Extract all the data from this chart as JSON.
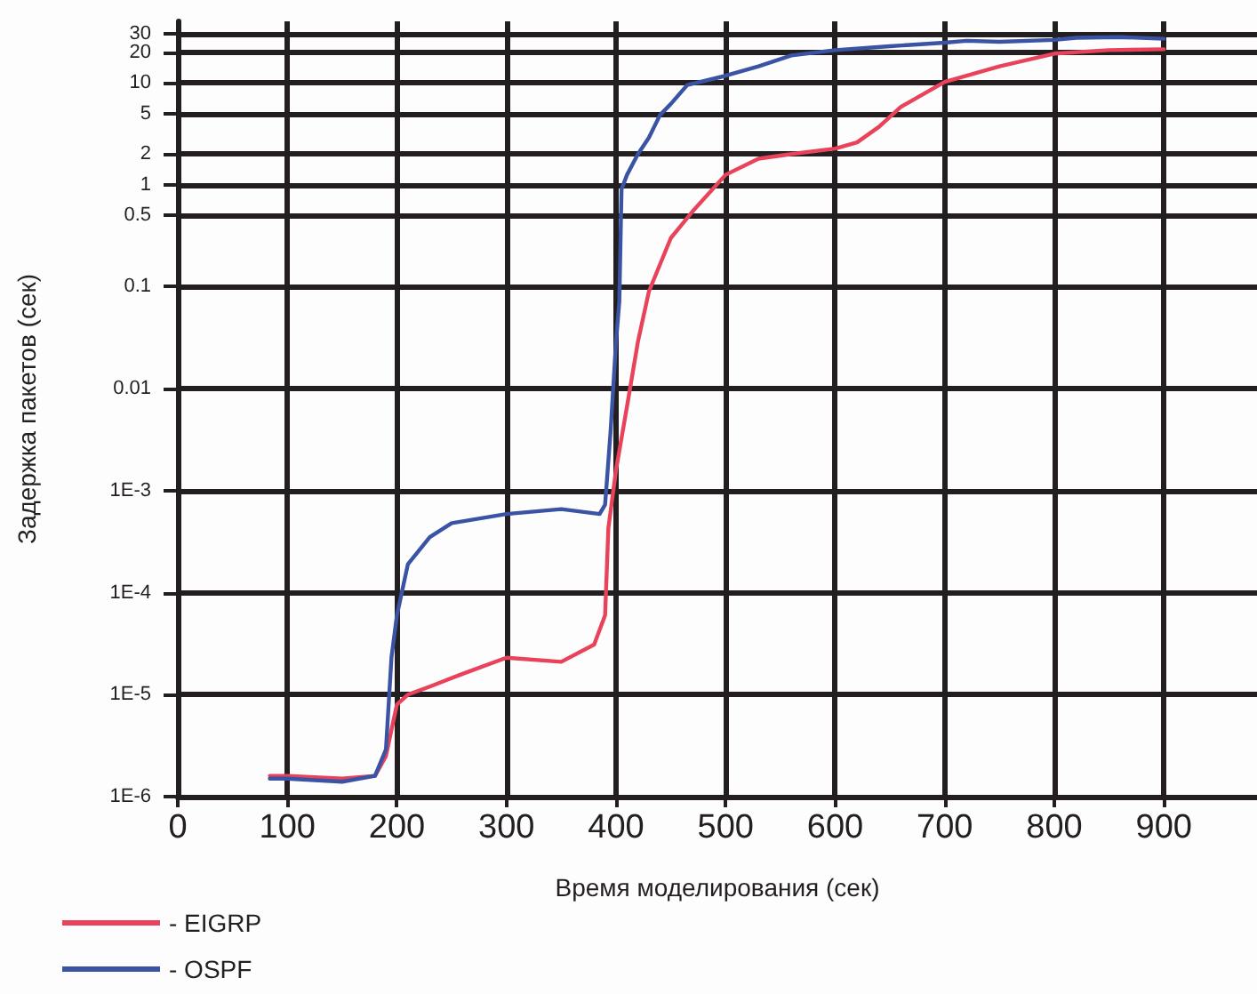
{
  "chart_data": {
    "type": "line",
    "xlabel": "Время моделирования (сек)",
    "ylabel": "Задержка пакетов (сек)",
    "xlim": [
      0,
      985
    ],
    "xticks": [
      0,
      100,
      200,
      300,
      400,
      500,
      600,
      700,
      800,
      900
    ],
    "ylim": [
      1e-06,
      40
    ],
    "yticks": [
      {
        "value": 1e-06,
        "label": "1E-6"
      },
      {
        "value": 1e-05,
        "label": "1E-5"
      },
      {
        "value": 0.0001,
        "label": "1E-4"
      },
      {
        "value": 0.001,
        "label": "1E-3"
      },
      0.01,
      0.1,
      0.5,
      1,
      2,
      5,
      10,
      20,
      30
    ],
    "log": true,
    "grid": true,
    "legend": "bottom left",
    "marker": "none",
    "line_style": "solid",
    "series": [
      {
        "name": "- EIGRP",
        "color": "#e8435a",
        "x": [
          84,
          100,
          150,
          180,
          190,
          195,
          200,
          210,
          230,
          260,
          300,
          350,
          380,
          390,
          393,
          400,
          410,
          420,
          430,
          450,
          470,
          500,
          530,
          560,
          600,
          620,
          640,
          660,
          700,
          750,
          800,
          850,
          900
        ],
        "values": [
          1.6e-06,
          1.6e-06,
          1.5e-06,
          1.6e-06,
          2.5e-06,
          4.5e-06,
          8e-06,
          1e-05,
          1.2e-05,
          1.6e-05,
          2.3e-05,
          2.1e-05,
          3.1e-05,
          6e-05,
          0.00043,
          0.0016,
          0.0067,
          0.029,
          0.09,
          0.3,
          0.55,
          1.25,
          1.8,
          2,
          2.26,
          2.6,
          3.7,
          5.8,
          10.2,
          14.5,
          19.3,
          20.9,
          21.3
        ]
      },
      {
        "name": "- OSPF",
        "color": "#3a53a4",
        "x": [
          84,
          100,
          150,
          180,
          190,
          195,
          200,
          210,
          230,
          250,
          300,
          350,
          385,
          390,
          395,
          400,
          403,
          405,
          410,
          420,
          430,
          440,
          450,
          465,
          500,
          530,
          560,
          600,
          650,
          700,
          720,
          750,
          800,
          820,
          860,
          900
        ],
        "values": [
          1.5e-06,
          1.5e-06,
          1.4e-06,
          1.6e-06,
          2.9e-06,
          2.3e-05,
          6e-05,
          0.00019,
          0.00035,
          0.00048,
          0.00059,
          0.00066,
          0.00059,
          0.00073,
          0.0038,
          0.029,
          0.072,
          0.9,
          1.25,
          2,
          2.9,
          4.8,
          6.2,
          9.5,
          11.7,
          14.5,
          18.5,
          20.9,
          22.8,
          24.7,
          25.8,
          25.2,
          26.3,
          27.6,
          28,
          27
        ]
      }
    ]
  }
}
